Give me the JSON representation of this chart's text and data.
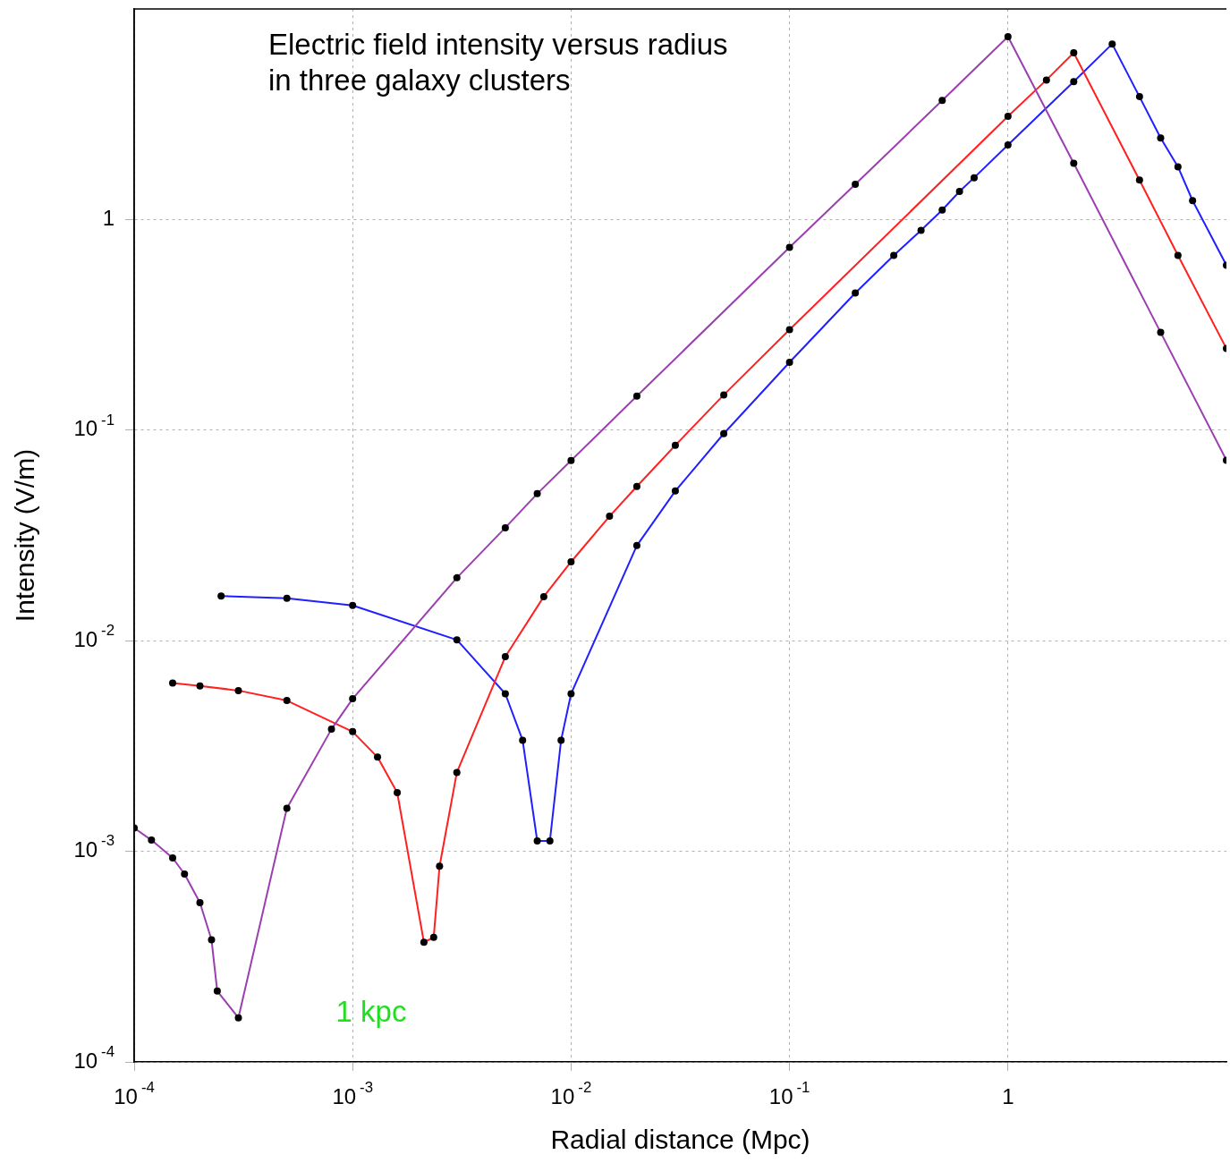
{
  "chart_data": {
    "type": "line",
    "title": "Electric field intensity versus radius\nin three galaxy clusters",
    "xlabel": "Radial distance (Mpc)",
    "ylabel": "Intensity (V/m)",
    "log": "xy",
    "grid": true,
    "legend": false,
    "marker": "circle",
    "line_style": "solid",
    "xlim": [
      0.0001,
      10
    ],
    "ylim": [
      0.0001,
      10
    ],
    "xticks": [
      {
        "value": 0.0001,
        "label": "10$^{-4}$"
      },
      {
        "value": 0.001,
        "label": "10$^{-3}$"
      },
      {
        "value": 0.01,
        "label": "10$^{-2}$"
      },
      {
        "value": 0.1,
        "label": "10$^{-1}$"
      },
      1
    ],
    "yticks": [
      {
        "value": 0.0001,
        "label": "10$^{-4}$"
      },
      {
        "value": 0.001,
        "label": "10$^{-3}$"
      },
      {
        "value": 0.01,
        "label": "10$^{-2}$"
      },
      {
        "value": 0.1,
        "label": "10$^{-1}$"
      },
      1
    ],
    "annotations": [
      "1 kpc"
    ],
    "series": [
      {
        "color": "#9b3fb0",
        "x": [
          0.0001,
          0.00012,
          0.00015,
          0.00017,
          0.0002,
          0.000226,
          0.00024,
          0.0003,
          0.0005,
          0.0008,
          0.001,
          0.003,
          0.005,
          0.007,
          0.01,
          0.02,
          0.1,
          0.2,
          0.5,
          1,
          2,
          5,
          10
        ],
        "values": [
          0.00129,
          0.00113,
          0.00093,
          0.00078,
          0.00057,
          0.00038,
          0.000217,
          0.000162,
          0.0016,
          0.0038,
          0.0053,
          0.0199,
          0.0344,
          0.0499,
          0.0717,
          0.145,
          0.738,
          1.47,
          3.68,
          7.38,
          1.85,
          0.291,
          0.072
        ]
      },
      {
        "color": "#ff2020",
        "x": [
          0.00015,
          0.0002,
          0.0003,
          0.0005,
          0.001,
          0.0013,
          0.0016,
          0.00212,
          0.00235,
          0.0025,
          0.003,
          0.005,
          0.0075,
          0.01,
          0.015,
          0.02,
          0.03,
          0.05,
          0.1,
          1,
          1.5,
          2,
          4,
          6,
          10
        ],
        "values": [
          0.0063,
          0.0061,
          0.0058,
          0.0052,
          0.0037,
          0.0028,
          0.0019,
          0.00037,
          0.00039,
          0.00085,
          0.00237,
          0.0084,
          0.0162,
          0.0237,
          0.039,
          0.054,
          0.0847,
          0.147,
          0.3,
          3.09,
          4.6,
          6.19,
          1.54,
          0.676,
          0.244
        ]
      },
      {
        "color": "#2020ff",
        "x": [
          0.00025,
          0.0005,
          0.001,
          0.003,
          0.005,
          0.006,
          0.007,
          0.008,
          0.009,
          0.01,
          0.02,
          0.03,
          0.05,
          0.1,
          0.2,
          0.3,
          0.4,
          0.5,
          0.6,
          0.7,
          1,
          2,
          3,
          4,
          5,
          6,
          7,
          10
        ],
        "values": [
          0.0163,
          0.0159,
          0.0147,
          0.0101,
          0.0056,
          0.00337,
          0.00112,
          0.00112,
          0.00337,
          0.0056,
          0.0283,
          0.0514,
          0.0962,
          0.21,
          0.448,
          0.676,
          0.889,
          1.11,
          1.36,
          1.58,
          2.26,
          4.52,
          6.82,
          3.83,
          2.44,
          1.78,
          1.23,
          0.607
        ]
      }
    ]
  }
}
